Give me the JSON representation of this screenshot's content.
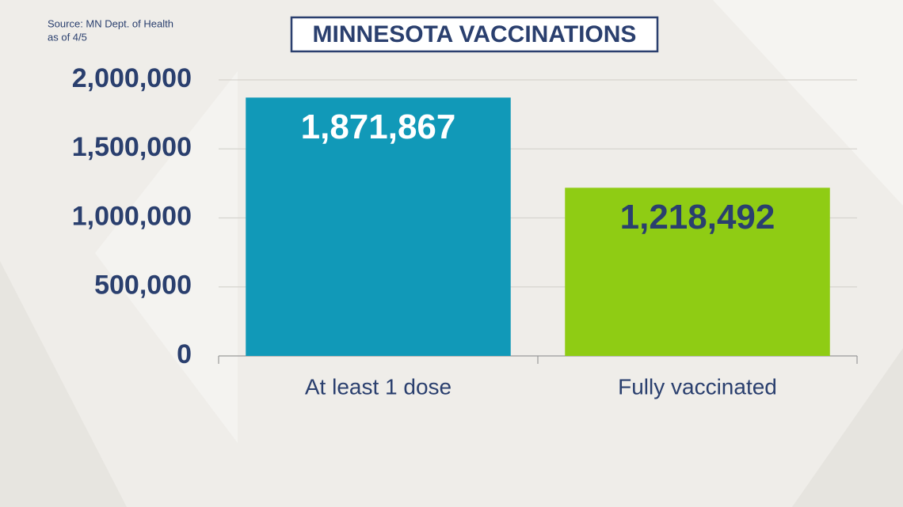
{
  "chart_data": {
    "type": "bar",
    "title": "MINNESOTA VACCINATIONS",
    "source": [
      "Source: MN Dept. of Health",
      "as of 4/5"
    ],
    "categories": [
      "At least 1 dose",
      "Fully vaccinated"
    ],
    "values": [
      1871867,
      1218492
    ],
    "value_labels": [
      "1,871,867",
      "1,218,492"
    ],
    "colors": [
      "#1199b8",
      "#8fcc14"
    ],
    "value_label_colors": [
      "#ffffff",
      "#2a3f6e"
    ],
    "ylim": [
      0,
      2000000
    ],
    "yticks": [
      0,
      {
        "value": 500000,
        "label": "500,000"
      },
      {
        "value": 1000000,
        "label": "1,000,000"
      },
      {
        "value": 1500000,
        "label": "1,500,000"
      },
      {
        "value": 2000000,
        "label": "2,000,000"
      }
    ],
    "grid": true
  }
}
